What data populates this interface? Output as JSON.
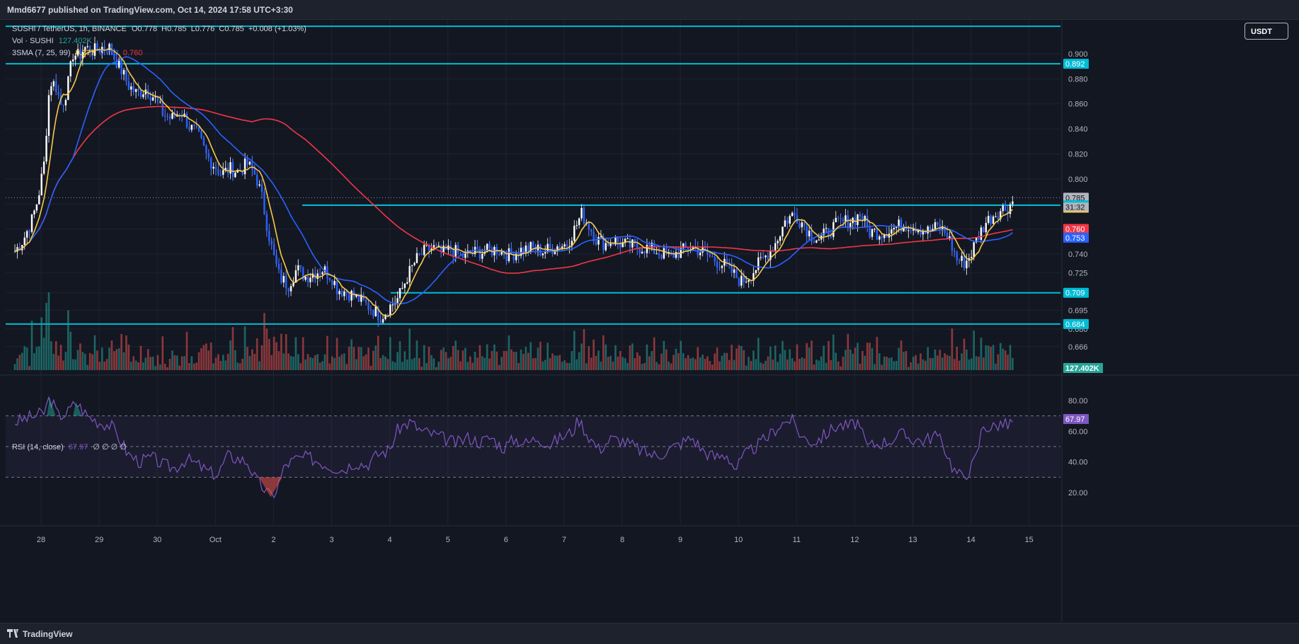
{
  "header": {
    "published": "Mmd6677 published on TradingView.com, Oct 14, 2024 17:58 UTC+3:30"
  },
  "footer": {
    "brand": "TradingView"
  },
  "currency_button": "USDT",
  "legend": {
    "symbol": "SUSHI / TetherUS, 1h, BINANCE",
    "open": "O0.778",
    "high": "H0.785",
    "low": "L0.776",
    "close": "C0.785",
    "change": "+0.008 (+1.03%)",
    "vol_label": "Vol · SUSHI",
    "vol_value": "127.402K",
    "sma_label": "3SMA (7, 25, 99)",
    "sma_v1": "0.777",
    "sma_v2": "0.753",
    "sma_v3": "0.760",
    "rsi_label": "RSI (14, close)",
    "rsi_value": "67.97",
    "rsi_extra": "∅ ∅ ∅ ∅"
  },
  "colors": {
    "up": "#26a69a",
    "down": "#ef5350",
    "sma7": "#f7c948",
    "sma25": "#2962ff",
    "sma99": "#f23645",
    "hline": "#00bcd4",
    "rsi": "#7e57c2",
    "grid": "#1f2330",
    "text": "#b2b5be"
  },
  "chart_data": [
    {
      "type": "candlestick",
      "title": "SUSHI / TetherUS, 1h, BINANCE",
      "x_ticks": [
        "28",
        "29",
        "30",
        "Oct",
        "2",
        "3",
        "4",
        "5",
        "6",
        "7",
        "8",
        "9",
        "10",
        "11",
        "12",
        "13",
        "14",
        "15"
      ],
      "y_ticks": [
        0.666,
        0.68,
        0.695,
        0.709,
        0.725,
        0.74,
        0.76,
        0.78,
        0.8,
        0.82,
        0.84,
        0.86,
        0.88,
        0.9
      ],
      "ylim": [
        0.66,
        0.92
      ],
      "close_path": [
        [
          27.55,
          0.742
        ],
        [
          27.7,
          0.752
        ],
        [
          27.85,
          0.768
        ],
        [
          27.95,
          0.785
        ],
        [
          28.05,
          0.812
        ],
        [
          28.15,
          0.878
        ],
        [
          28.25,
          0.875
        ],
        [
          28.35,
          0.858
        ],
        [
          28.45,
          0.872
        ],
        [
          28.55,
          0.9
        ],
        [
          28.65,
          0.898
        ],
        [
          28.75,
          0.905
        ],
        [
          28.9,
          0.902
        ],
        [
          29.05,
          0.905
        ],
        [
          29.15,
          0.907
        ],
        [
          29.25,
          0.898
        ],
        [
          29.35,
          0.89
        ],
        [
          29.5,
          0.875
        ],
        [
          29.65,
          0.868
        ],
        [
          29.8,
          0.872
        ],
        [
          29.95,
          0.865
        ],
        [
          30.1,
          0.852
        ],
        [
          30.25,
          0.848
        ],
        [
          30.4,
          0.855
        ],
        [
          30.55,
          0.842
        ],
        [
          30.7,
          0.835
        ],
        [
          30.85,
          0.818
        ],
        [
          31.0,
          0.81
        ],
        [
          31.1,
          0.804
        ],
        [
          31.25,
          0.808
        ],
        [
          31.4,
          0.806
        ],
        [
          31.55,
          0.812
        ],
        [
          31.7,
          0.802
        ],
        [
          31.8,
          0.785
        ],
        [
          31.9,
          0.76
        ],
        [
          32.0,
          0.738
        ],
        [
          32.1,
          0.722
        ],
        [
          32.25,
          0.715
        ],
        [
          32.4,
          0.728
        ],
        [
          32.55,
          0.722
        ],
        [
          32.7,
          0.725
        ],
        [
          32.85,
          0.728
        ],
        [
          33.0,
          0.722
        ],
        [
          33.1,
          0.712
        ],
        [
          33.25,
          0.71
        ],
        [
          33.4,
          0.706
        ],
        [
          33.55,
          0.701
        ],
        [
          33.7,
          0.696
        ],
        [
          33.85,
          0.69
        ],
        [
          34.0,
          0.698
        ],
        [
          34.15,
          0.705
        ],
        [
          34.3,
          0.722
        ],
        [
          34.45,
          0.735
        ],
        [
          34.6,
          0.742
        ],
        [
          34.75,
          0.745
        ],
        [
          34.9,
          0.74
        ],
        [
          35.05,
          0.744
        ],
        [
          35.25,
          0.738
        ],
        [
          35.45,
          0.741
        ],
        [
          35.65,
          0.742
        ],
        [
          35.85,
          0.744
        ],
        [
          36.05,
          0.739
        ],
        [
          36.25,
          0.743
        ],
        [
          36.45,
          0.745
        ],
        [
          36.65,
          0.742
        ],
        [
          36.85,
          0.746
        ],
        [
          37.05,
          0.748
        ],
        [
          37.2,
          0.762
        ],
        [
          37.3,
          0.772
        ],
        [
          37.4,
          0.765
        ],
        [
          37.55,
          0.752
        ],
        [
          37.7,
          0.748
        ],
        [
          37.85,
          0.751
        ],
        [
          38.0,
          0.748
        ],
        [
          38.2,
          0.746
        ],
        [
          38.4,
          0.745
        ],
        [
          38.6,
          0.742
        ],
        [
          38.8,
          0.738
        ],
        [
          39.0,
          0.742
        ],
        [
          39.2,
          0.746
        ],
        [
          39.4,
          0.741
        ],
        [
          39.6,
          0.735
        ],
        [
          39.8,
          0.73
        ],
        [
          39.95,
          0.722
        ],
        [
          40.05,
          0.718
        ],
        [
          40.2,
          0.723
        ],
        [
          40.35,
          0.732
        ],
        [
          40.5,
          0.74
        ],
        [
          40.65,
          0.75
        ],
        [
          40.8,
          0.766
        ],
        [
          40.95,
          0.772
        ],
        [
          41.1,
          0.765
        ],
        [
          41.25,
          0.755
        ],
        [
          41.4,
          0.752
        ],
        [
          41.55,
          0.758
        ],
        [
          41.7,
          0.764
        ],
        [
          41.85,
          0.766
        ],
        [
          42.0,
          0.768
        ],
        [
          42.1,
          0.772
        ],
        [
          42.25,
          0.758
        ],
        [
          42.45,
          0.757
        ],
        [
          42.65,
          0.76
        ],
        [
          42.85,
          0.764
        ],
        [
          43.05,
          0.762
        ],
        [
          43.25,
          0.758
        ],
        [
          43.45,
          0.762
        ],
        [
          43.6,
          0.755
        ],
        [
          43.75,
          0.736
        ],
        [
          43.9,
          0.733
        ],
        [
          44.0,
          0.74
        ],
        [
          44.1,
          0.752
        ],
        [
          44.25,
          0.765
        ],
        [
          44.4,
          0.772
        ],
        [
          44.55,
          0.776
        ],
        [
          44.65,
          0.778
        ],
        [
          44.75,
          0.785
        ]
      ],
      "series": [
        {
          "name": "SMA 7",
          "value": 0.777
        },
        {
          "name": "SMA 25",
          "value": 0.753
        },
        {
          "name": "SMA 99",
          "value": 0.76
        },
        {
          "name": "Vol · SUSHI",
          "value": "127.402K"
        }
      ],
      "price_labels": [
        0.892,
        0.785,
        0.779,
        0.777,
        0.76,
        0.753,
        0.709,
        0.684
      ],
      "countdown": "31:32",
      "horizontal_lines": [
        0.922,
        0.892,
        0.779,
        0.709,
        0.684
      ]
    },
    {
      "type": "line",
      "title": "RSI (14, close)",
      "y_ticks": [
        20,
        40,
        60,
        80
      ],
      "ylim": [
        10,
        90
      ],
      "bands": [
        30,
        50,
        70
      ],
      "last_value": 67.97,
      "rsi_path": [
        [
          27.55,
          66
        ],
        [
          27.8,
          69
        ],
        [
          28.05,
          72
        ],
        [
          28.15,
          82
        ],
        [
          28.3,
          70
        ],
        [
          28.45,
          72
        ],
        [
          28.6,
          79
        ],
        [
          28.8,
          70
        ],
        [
          29.0,
          66
        ],
        [
          29.2,
          64
        ],
        [
          29.35,
          55
        ],
        [
          29.5,
          45
        ],
        [
          29.7,
          40
        ],
        [
          29.9,
          43
        ],
        [
          30.1,
          38
        ],
        [
          30.3,
          36
        ],
        [
          30.5,
          42
        ],
        [
          30.7,
          38
        ],
        [
          30.9,
          33
        ],
        [
          31.05,
          32
        ],
        [
          31.2,
          44
        ],
        [
          31.4,
          42
        ],
        [
          31.55,
          40
        ],
        [
          31.7,
          28
        ],
        [
          31.85,
          22
        ],
        [
          31.95,
          17
        ],
        [
          32.05,
          22
        ],
        [
          32.2,
          38
        ],
        [
          32.4,
          42
        ],
        [
          32.6,
          43
        ],
        [
          32.8,
          40
        ],
        [
          33.0,
          37
        ],
        [
          33.2,
          35
        ],
        [
          33.4,
          40
        ],
        [
          33.6,
          38
        ],
        [
          33.8,
          45
        ],
        [
          34.0,
          48
        ],
        [
          34.15,
          62
        ],
        [
          34.35,
          66
        ],
        [
          34.55,
          60
        ],
        [
          34.75,
          58
        ],
        [
          34.95,
          55
        ],
        [
          35.15,
          52
        ],
        [
          35.35,
          56
        ],
        [
          35.55,
          53
        ],
        [
          35.75,
          56
        ],
        [
          35.95,
          49
        ],
        [
          36.15,
          55
        ],
        [
          36.35,
          52
        ],
        [
          36.55,
          56
        ],
        [
          36.75,
          51
        ],
        [
          36.95,
          56
        ],
        [
          37.15,
          60
        ],
        [
          37.25,
          68
        ],
        [
          37.4,
          58
        ],
        [
          37.6,
          48
        ],
        [
          37.8,
          55
        ],
        [
          38.0,
          54
        ],
        [
          38.2,
          50
        ],
        [
          38.4,
          46
        ],
        [
          38.6,
          44
        ],
        [
          38.8,
          48
        ],
        [
          39.0,
          52
        ],
        [
          39.2,
          56
        ],
        [
          39.4,
          47
        ],
        [
          39.6,
          43
        ],
        [
          39.8,
          45
        ],
        [
          39.95,
          35
        ],
        [
          40.1,
          44
        ],
        [
          40.3,
          50
        ],
        [
          40.5,
          56
        ],
        [
          40.7,
          64
        ],
        [
          40.9,
          68
        ],
        [
          41.1,
          56
        ],
        [
          41.3,
          53
        ],
        [
          41.5,
          58
        ],
        [
          41.7,
          64
        ],
        [
          41.9,
          63
        ],
        [
          42.05,
          66
        ],
        [
          42.2,
          50
        ],
        [
          42.4,
          52
        ],
        [
          42.6,
          54
        ],
        [
          42.8,
          58
        ],
        [
          43.0,
          55
        ],
        [
          43.2,
          54
        ],
        [
          43.4,
          58
        ],
        [
          43.55,
          49
        ],
        [
          43.7,
          35
        ],
        [
          43.85,
          30
        ],
        [
          44.0,
          36
        ],
        [
          44.1,
          44
        ],
        [
          44.2,
          64
        ],
        [
          44.35,
          62
        ],
        [
          44.5,
          65
        ],
        [
          44.65,
          64
        ],
        [
          44.75,
          67.97
        ]
      ]
    }
  ]
}
